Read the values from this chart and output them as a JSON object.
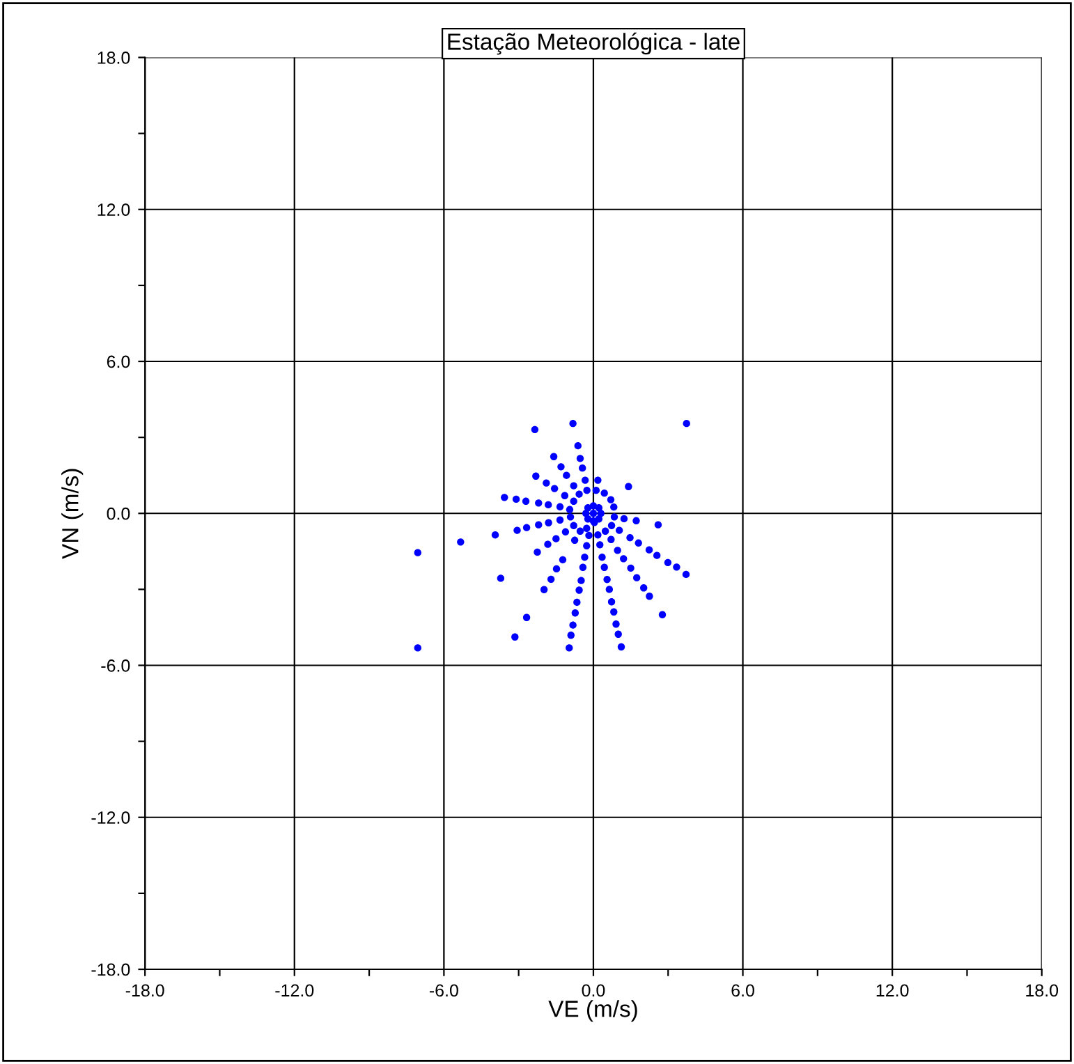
{
  "chart_data": {
    "type": "scatter",
    "title": "Estação Meteorológica - late",
    "xlabel": "VE (m/s)",
    "ylabel": "VN (m/s)",
    "xlim": [
      -18,
      18
    ],
    "ylim": [
      -18,
      18
    ],
    "xticks": [
      {
        "value": -18,
        "label": "-18.0"
      },
      {
        "value": -15,
        "label": null
      },
      {
        "value": -12,
        "label": "-12.0"
      },
      {
        "value": -9,
        "label": null
      },
      {
        "value": -6,
        "label": "-6.0"
      },
      {
        "value": -3,
        "label": null
      },
      {
        "value": 0,
        "label": "0.0"
      },
      {
        "value": 3,
        "label": null
      },
      {
        "value": 6,
        "label": "6.0"
      },
      {
        "value": 9,
        "label": null
      },
      {
        "value": 12,
        "label": "12.0"
      },
      {
        "value": 15,
        "label": null
      },
      {
        "value": 18,
        "label": "18.0"
      }
    ],
    "yticks": [
      {
        "value": -18,
        "label": "-18.0"
      },
      {
        "value": -15,
        "label": null
      },
      {
        "value": -12,
        "label": "-12.0"
      },
      {
        "value": -9,
        "label": null
      },
      {
        "value": -6,
        "label": "-6.0"
      },
      {
        "value": -3,
        "label": null
      },
      {
        "value": 0,
        "label": "0.0"
      },
      {
        "value": 3,
        "label": null
      },
      {
        "value": 6,
        "label": "6.0"
      },
      {
        "value": 9,
        "label": null
      },
      {
        "value": 12,
        "label": "12.0"
      },
      {
        "value": 15,
        "label": null
      },
      {
        "value": 18,
        "label": "18.0"
      }
    ],
    "grid": true,
    "marker": "circle",
    "series": [
      {
        "color": "#0000ff",
        "x": [
          -2.35,
          -0.82,
          3.74,
          -0.62,
          -1.59,
          -0.53,
          -1.3,
          -0.44,
          -2.31,
          -1.08,
          -0.33,
          0.18,
          -1.89,
          1.41,
          -1.56,
          -0.79,
          -0.26,
          0.11,
          0.44,
          -1.15,
          -0.57,
          0.7,
          -3.57,
          -3.1,
          -2.71,
          -2.2,
          -1.81,
          -1.34,
          -0.79,
          -0.95,
          0.82,
          1.23,
          1.72,
          2.6,
          0.84,
          -3.94,
          -3.06,
          -2.68,
          -2.2,
          -1.8,
          -1.34,
          -0.92,
          -1.12,
          -1.5,
          -1.83,
          -2.25,
          -0.75,
          -0.79,
          -0.53,
          -0.27,
          -0.18,
          -0.27,
          -0.35,
          -0.42,
          -1.23,
          -1.48,
          0.04,
          0.18,
          0.26,
          0.35,
          0.44,
          0.48,
          0.71,
          0.97,
          1.21,
          1.5,
          0.73,
          1.04,
          1.47,
          1.81,
          2.24,
          2.55,
          2.99,
          3.34,
          -3.72,
          -1.98,
          -1.7,
          -0.57,
          -0.49,
          -0.66,
          -0.73,
          -0.82,
          -0.9,
          -0.97,
          -2.68,
          -3.15,
          0.55,
          0.64,
          0.73,
          0.82,
          0.91,
          1.0,
          1.12,
          1.74,
          2.02,
          2.25,
          2.77,
          3.72,
          -7.05,
          -7.05,
          -5.33,
          0,
          -0.3,
          0.3,
          0,
          0,
          -0.22,
          0.22,
          -0.22,
          0.22
        ],
        "values": [
          3.31,
          3.55,
          3.55,
          2.67,
          2.24,
          2.17,
          1.84,
          1.79,
          1.47,
          1.5,
          1.31,
          1.31,
          1.2,
          1.06,
          0.98,
          1.09,
          0.91,
          0.91,
          0.8,
          0.7,
          0.76,
          0.54,
          0.63,
          0.56,
          0.48,
          0.41,
          0.34,
          0.26,
          0.48,
          0.15,
          0.25,
          -0.21,
          -0.29,
          -0.45,
          -0.14,
          -0.85,
          -0.67,
          -0.56,
          -0.45,
          -0.37,
          -0.26,
          -0.14,
          -0.73,
          -1.0,
          -1.22,
          -1.53,
          -1.06,
          -0.48,
          -0.7,
          -0.59,
          -0.87,
          -1.28,
          -1.73,
          -2.13,
          -1.83,
          -2.19,
          -0.36,
          -0.85,
          -1.24,
          -1.73,
          -2.13,
          -0.7,
          -1.03,
          -1.46,
          -1.79,
          -2.16,
          -0.48,
          -0.67,
          -0.96,
          -1.17,
          -1.44,
          -1.66,
          -1.94,
          -2.12,
          -2.56,
          -3.01,
          -2.6,
          -3.03,
          -2.65,
          -3.51,
          -3.93,
          -4.41,
          -4.81,
          -5.31,
          -4.11,
          -4.88,
          -2.61,
          -3.0,
          -3.49,
          -3.89,
          -4.37,
          -4.77,
          -5.27,
          -2.54,
          -2.94,
          -3.27,
          -4.0,
          -2.41,
          -1.55,
          -5.31,
          -1.13,
          0,
          0,
          0,
          0.3,
          -0.3,
          0.22,
          0.22,
          -0.22,
          -0.22
        ]
      }
    ]
  }
}
